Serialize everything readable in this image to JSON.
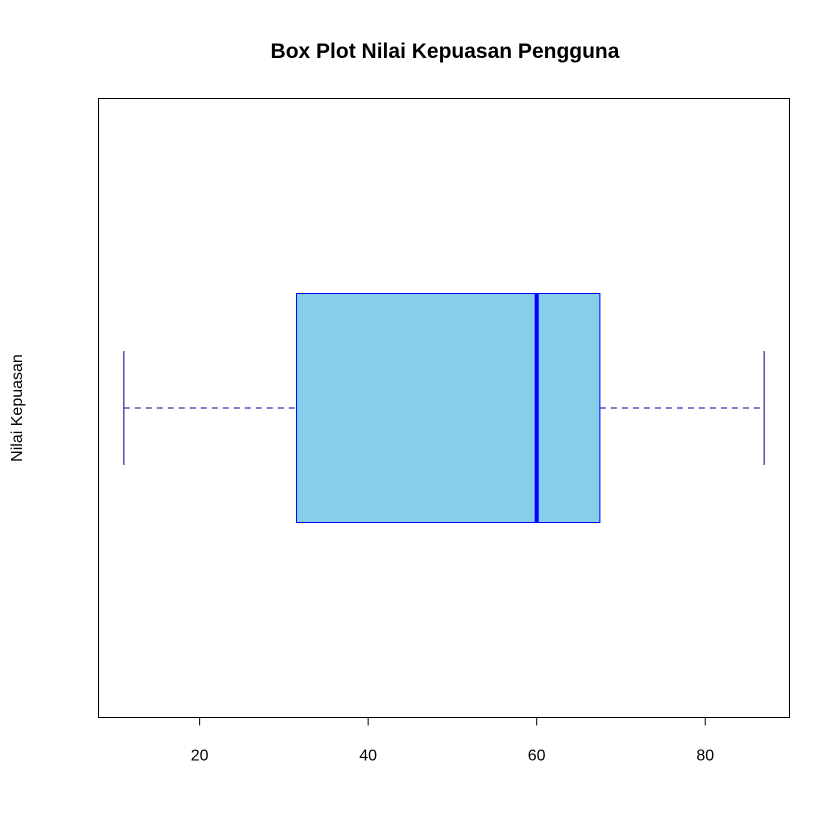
{
  "chart_data": {
    "type": "boxplot",
    "orientation": "horizontal",
    "title": "Box Plot Nilai Kepuasan Pengguna",
    "xlabel": "",
    "ylabel": "Nilai Kepuasan",
    "xlim": [
      8,
      90
    ],
    "x_ticks": [
      20,
      40,
      60,
      80
    ],
    "grid": false,
    "legend": "none",
    "series": [
      {
        "min": 11,
        "q1": 31.5,
        "median": 60,
        "q3": 67.5,
        "max": 87
      }
    ],
    "colors": {
      "box_fill": "#87CEEB",
      "box_border": "#0000FF",
      "median_line": "#0000FF",
      "whisker": "#5353B5",
      "axis": "#000000"
    }
  }
}
